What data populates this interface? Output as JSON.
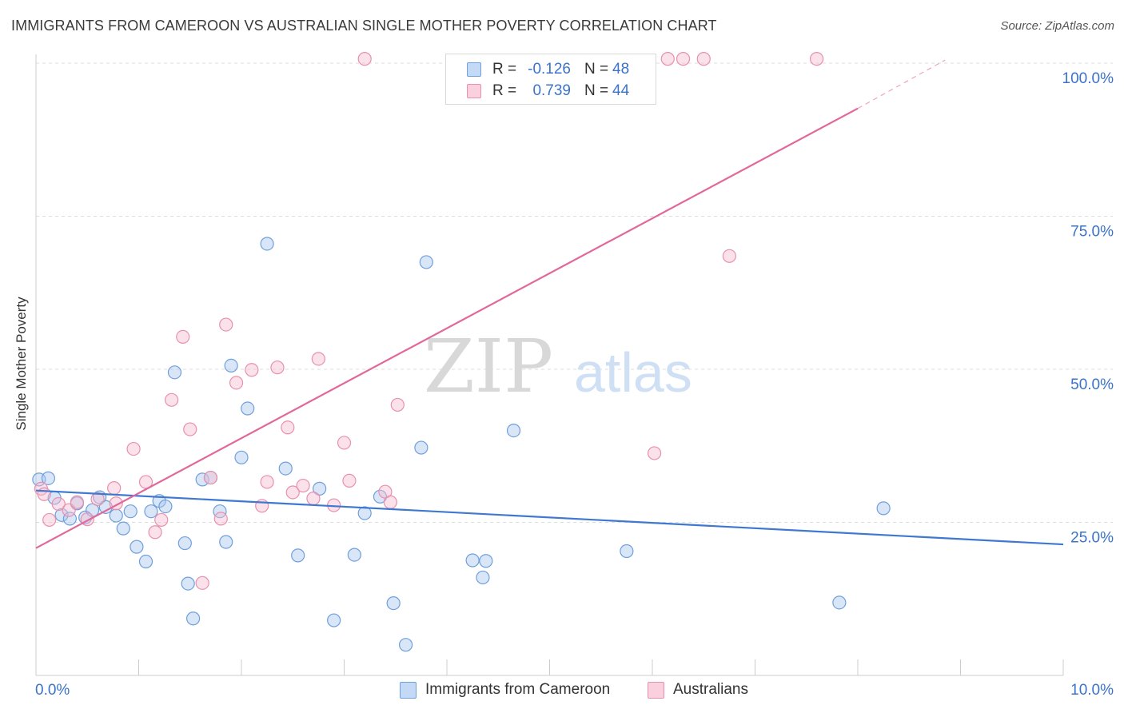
{
  "header": {
    "title": "IMMIGRANTS FROM CAMEROON VS AUSTRALIAN SINGLE MOTHER POVERTY CORRELATION CHART",
    "source": "Source: ZipAtlas.com"
  },
  "colors": {
    "series_blue_fill": "#a9c8f0",
    "series_blue_stroke": "#6f9fdc",
    "series_blue_line": "#3f78d0",
    "series_pink_fill": "#f7bcd0",
    "series_pink_stroke": "#e890ae",
    "series_pink_line": "#e2689a",
    "tick_label": "#3a73c9",
    "grid": "#dddddd",
    "watermark": "#d6d6d6"
  },
  "watermark": {
    "part1": "ZIP",
    "part2": "atlas"
  },
  "legend": {
    "rows": [
      {
        "r_label": "R =",
        "r_value": "-0.126",
        "n_label": "N =",
        "n_value": "48"
      },
      {
        "r_label": "R =",
        "r_value": "0.739",
        "n_label": "N =",
        "n_value": "44"
      }
    ]
  },
  "chart_data": {
    "type": "scatter",
    "title": "IMMIGRANTS FROM CAMEROON VS AUSTRALIAN SINGLE MOTHER POVERTY CORRELATION CHART",
    "xlabel": "",
    "ylabel": "Single Mother Poverty",
    "xlim": [
      0,
      10
    ],
    "ylim": [
      0,
      100
    ],
    "x_unit": "%",
    "y_unit": "%",
    "x_tick_labels": [
      {
        "value": 0,
        "label": "0.0%"
      },
      {
        "value": 10,
        "label": "10.0%"
      }
    ],
    "y_tick_labels": [
      {
        "value": 25,
        "label": "25.0%"
      },
      {
        "value": 50,
        "label": "50.0%"
      },
      {
        "value": 75,
        "label": "75.0%"
      },
      {
        "value": 100,
        "label": "100.0%"
      }
    ],
    "grid": true,
    "legend_position": "top-center",
    "series": [
      {
        "name": "Immigrants from Cameroon",
        "color": "#a9c8f0",
        "r": -0.126,
        "n": 48,
        "trend": {
          "x": [
            0,
            10
          ],
          "y": [
            30.2,
            21.4
          ]
        },
        "points": [
          {
            "x": 0.03,
            "y": 32.0
          },
          {
            "x": 0.12,
            "y": 32.2
          },
          {
            "x": 0.18,
            "y": 29.0
          },
          {
            "x": 0.25,
            "y": 26.2
          },
          {
            "x": 0.33,
            "y": 25.6
          },
          {
            "x": 0.4,
            "y": 28.1
          },
          {
            "x": 0.48,
            "y": 25.8
          },
          {
            "x": 0.55,
            "y": 27.0
          },
          {
            "x": 0.62,
            "y": 29.1
          },
          {
            "x": 0.68,
            "y": 27.5
          },
          {
            "x": 0.78,
            "y": 26.1
          },
          {
            "x": 0.85,
            "y": 24.0
          },
          {
            "x": 0.92,
            "y": 26.8
          },
          {
            "x": 0.98,
            "y": 21.0
          },
          {
            "x": 1.07,
            "y": 18.6
          },
          {
            "x": 1.12,
            "y": 26.8
          },
          {
            "x": 1.2,
            "y": 28.5
          },
          {
            "x": 1.26,
            "y": 27.6
          },
          {
            "x": 1.35,
            "y": 49.5
          },
          {
            "x": 1.45,
            "y": 21.6
          },
          {
            "x": 1.48,
            "y": 15.0
          },
          {
            "x": 1.53,
            "y": 9.3
          },
          {
            "x": 1.62,
            "y": 32.0
          },
          {
            "x": 1.7,
            "y": 32.3
          },
          {
            "x": 1.79,
            "y": 26.8
          },
          {
            "x": 1.85,
            "y": 21.8
          },
          {
            "x": 1.9,
            "y": 50.6
          },
          {
            "x": 2.06,
            "y": 43.6
          },
          {
            "x": 2.0,
            "y": 35.6
          },
          {
            "x": 2.25,
            "y": 70.5
          },
          {
            "x": 2.43,
            "y": 33.8
          },
          {
            "x": 2.55,
            "y": 19.6
          },
          {
            "x": 2.76,
            "y": 30.5
          },
          {
            "x": 2.9,
            "y": 9.0
          },
          {
            "x": 3.1,
            "y": 19.7
          },
          {
            "x": 3.2,
            "y": 26.5
          },
          {
            "x": 3.35,
            "y": 29.2
          },
          {
            "x": 3.48,
            "y": 11.8
          },
          {
            "x": 3.6,
            "y": 5.0
          },
          {
            "x": 3.75,
            "y": 37.2
          },
          {
            "x": 3.8,
            "y": 67.5
          },
          {
            "x": 4.25,
            "y": 18.8
          },
          {
            "x": 4.35,
            "y": 16.0
          },
          {
            "x": 4.38,
            "y": 18.7
          },
          {
            "x": 4.65,
            "y": 40.0
          },
          {
            "x": 5.75,
            "y": 20.3
          },
          {
            "x": 7.82,
            "y": 11.9
          },
          {
            "x": 8.25,
            "y": 27.3
          }
        ]
      },
      {
        "name": "Australians",
        "color": "#f7bcd0",
        "r": 0.739,
        "n": 44,
        "trend": {
          "x": [
            0,
            8.0
          ],
          "y": [
            20.8,
            92.6
          ]
        },
        "trend_dashed": {
          "x": [
            8.0,
            8.85
          ],
          "y": [
            92.6,
            100.5
          ]
        },
        "points": [
          {
            "x": 0.05,
            "y": 30.5
          },
          {
            "x": 0.08,
            "y": 29.6
          },
          {
            "x": 0.13,
            "y": 25.4
          },
          {
            "x": 0.22,
            "y": 28.0
          },
          {
            "x": 0.32,
            "y": 27.0
          },
          {
            "x": 0.4,
            "y": 28.3
          },
          {
            "x": 0.5,
            "y": 25.5
          },
          {
            "x": 0.6,
            "y": 28.8
          },
          {
            "x": 0.78,
            "y": 28.1
          },
          {
            "x": 0.76,
            "y": 30.6
          },
          {
            "x": 0.95,
            "y": 37.0
          },
          {
            "x": 1.07,
            "y": 31.6
          },
          {
            "x": 1.16,
            "y": 23.4
          },
          {
            "x": 1.22,
            "y": 25.4
          },
          {
            "x": 1.32,
            "y": 45.0
          },
          {
            "x": 1.43,
            "y": 55.3
          },
          {
            "x": 1.5,
            "y": 40.2
          },
          {
            "x": 1.62,
            "y": 15.1
          },
          {
            "x": 1.7,
            "y": 32.3
          },
          {
            "x": 1.8,
            "y": 25.6
          },
          {
            "x": 1.85,
            "y": 57.3
          },
          {
            "x": 1.95,
            "y": 47.8
          },
          {
            "x": 2.1,
            "y": 49.9
          },
          {
            "x": 2.2,
            "y": 27.7
          },
          {
            "x": 2.25,
            "y": 31.6
          },
          {
            "x": 2.35,
            "y": 50.3
          },
          {
            "x": 2.45,
            "y": 40.5
          },
          {
            "x": 2.5,
            "y": 29.9
          },
          {
            "x": 2.6,
            "y": 31.0
          },
          {
            "x": 2.7,
            "y": 28.9
          },
          {
            "x": 2.75,
            "y": 51.7
          },
          {
            "x": 2.9,
            "y": 27.8
          },
          {
            "x": 3.0,
            "y": 38.0
          },
          {
            "x": 3.05,
            "y": 31.8
          },
          {
            "x": 3.2,
            "y": 100.7
          },
          {
            "x": 3.52,
            "y": 44.2
          },
          {
            "x": 3.4,
            "y": 30.0
          },
          {
            "x": 3.45,
            "y": 28.3
          },
          {
            "x": 6.02,
            "y": 36.3
          },
          {
            "x": 6.15,
            "y": 100.7
          },
          {
            "x": 6.3,
            "y": 100.7
          },
          {
            "x": 6.5,
            "y": 100.7
          },
          {
            "x": 6.75,
            "y": 68.5
          },
          {
            "x": 7.6,
            "y": 100.7
          }
        ]
      }
    ]
  },
  "bottom_legend": {
    "items": [
      "Immigrants from Cameroon",
      "Australians"
    ]
  }
}
